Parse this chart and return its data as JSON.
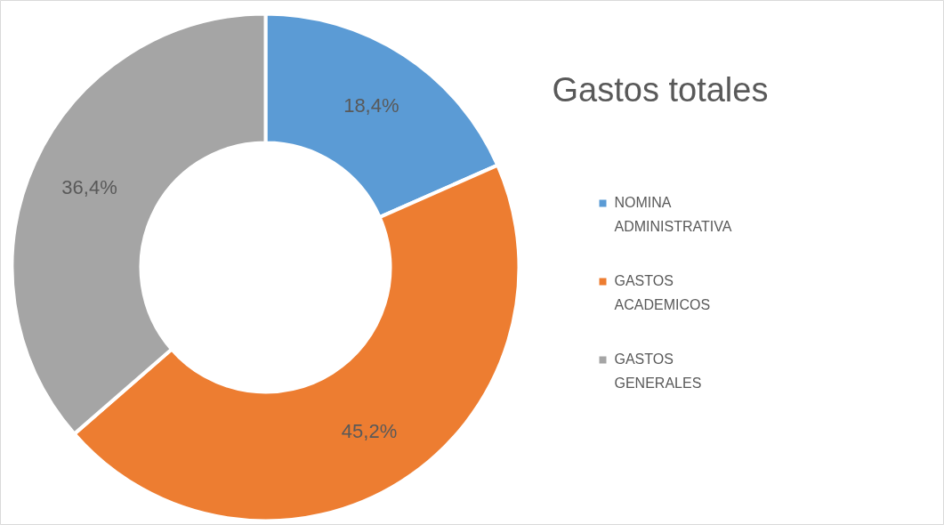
{
  "chart_data": {
    "type": "donut",
    "title": "Gastos totales",
    "categories": [
      "NOMINA ADMINISTRATIVA",
      "GASTOS ACADEMICOS",
      "GASTOS GENERALES"
    ],
    "values": [
      18.4,
      45.2,
      36.4
    ],
    "value_labels": [
      "18,4%",
      "45,2%",
      "36,4%"
    ],
    "colors": [
      "#5b9bd5",
      "#ed7d31",
      "#a5a5a5"
    ],
    "legend": "right"
  }
}
